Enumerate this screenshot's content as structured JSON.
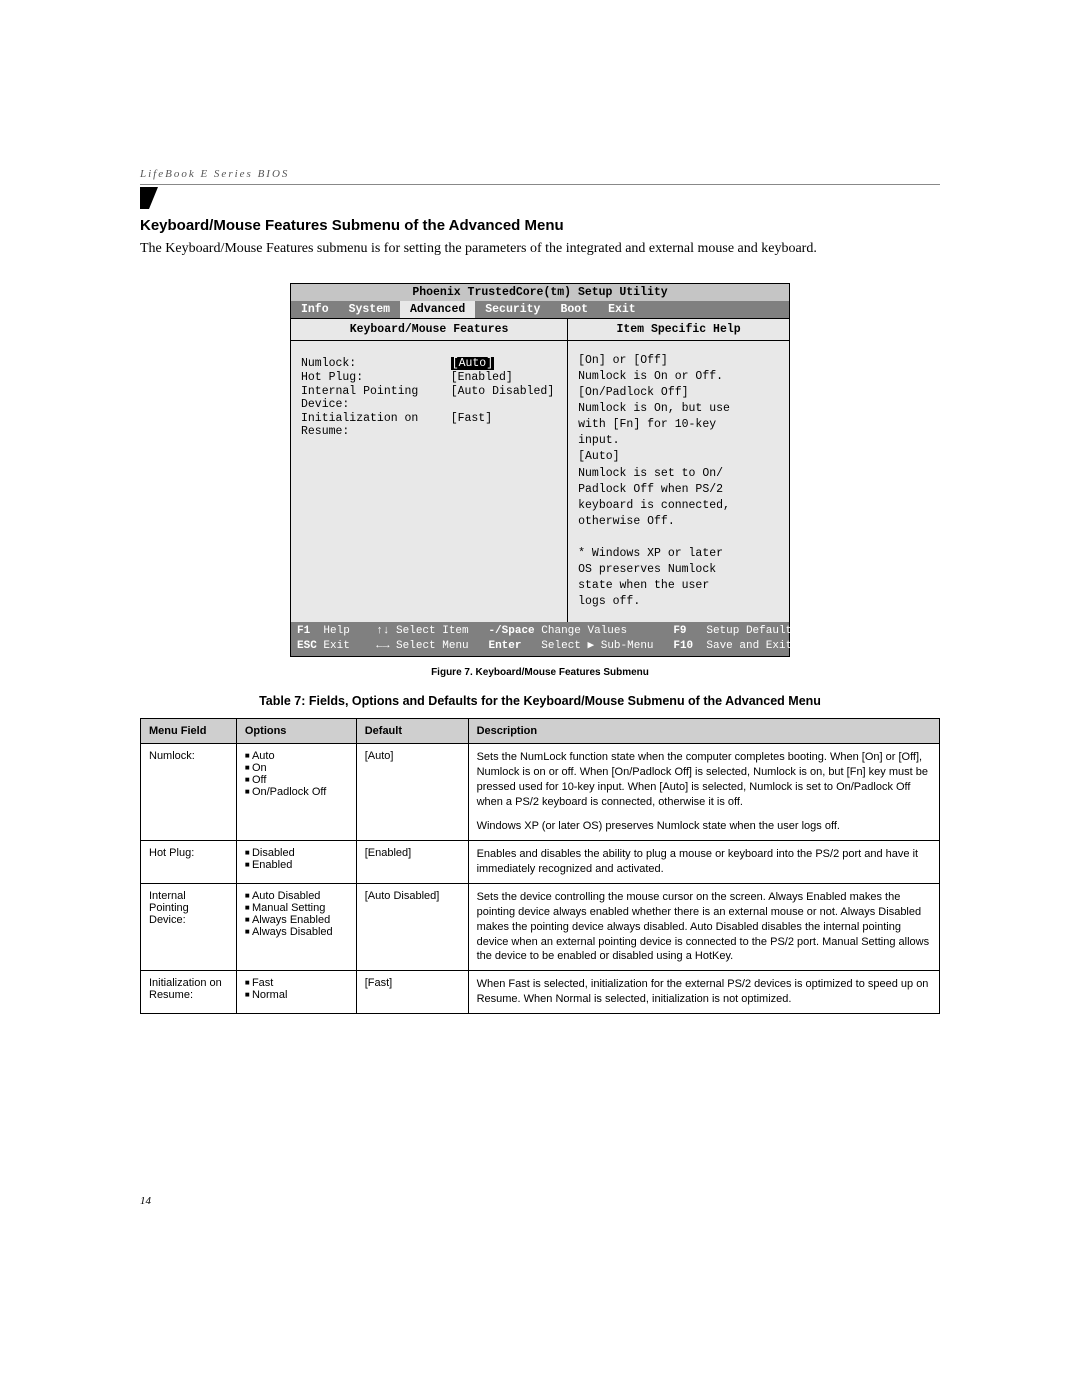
{
  "header": {
    "running_head": "LifeBook E Series BIOS",
    "page_number": "14"
  },
  "section": {
    "title": "Keyboard/Mouse Features Submenu of the Advanced Menu",
    "intro": "The Keyboard/Mouse Features submenu is for setting the parameters of the integrated and external mouse and keyboard."
  },
  "bios": {
    "utility_title": "Phoenix TrustedCore(tm) Setup Utility",
    "tabs": [
      "Info",
      "System",
      "Advanced",
      "Security",
      "Boot",
      "Exit"
    ],
    "active_tab_index": 2,
    "left_header": "Keyboard/Mouse Features",
    "right_header": "Item Specific Help",
    "settings": [
      {
        "label": "Numlock:",
        "value": "[Auto]",
        "selected": true
      },
      {
        "label": "Hot Plug:",
        "value": "[Enabled]",
        "selected": false
      },
      {
        "label": "Internal Pointing Device:",
        "value": "[Auto Disabled]",
        "selected": false
      },
      {
        "label": "Initialization on Resume:",
        "value": "[Fast]",
        "selected": false
      }
    ],
    "help_lines": [
      "[On] or [Off]",
      "Numlock is On or Off.",
      "[On/Padlock Off]",
      "Numlock is On, but use",
      "with [Fn] for 10-key",
      "input.",
      "[Auto]",
      "Numlock is set to On/",
      "Padlock Off when PS/2",
      "keyboard is connected,",
      "otherwise Off.",
      "",
      "* Windows XP or later",
      "OS preserves Numlock",
      "state when the user",
      "logs off."
    ],
    "footer": {
      "row1": {
        "k1": "F1",
        "t1": "Help",
        "nav1": "↑↓ Select Item",
        "k2": "-/Space",
        "t2": "Change Values",
        "k3": "F9",
        "t3": "Setup Defaults"
      },
      "row2": {
        "k1": "ESC",
        "t1": "Exit",
        "nav1": "←→ Select Menu",
        "k2": "Enter",
        "t2": "Select ▶ Sub-Menu",
        "k3": "F10",
        "t3": "Save and Exit"
      }
    }
  },
  "figure_caption": "Figure 7.  Keyboard/Mouse Features Submenu",
  "table_caption": "Table 7: Fields, Options and Defaults for the Keyboard/Mouse Submenu of the Advanced Menu",
  "table": {
    "columns": [
      "Menu Field",
      "Options",
      "Default",
      "Description"
    ],
    "rows": [
      {
        "field": "Numlock:",
        "options": [
          "Auto",
          "On",
          "Off",
          "On/Padlock Off"
        ],
        "default": "[Auto]",
        "description": "Sets the NumLock function state when the computer completes booting. When [On] or [Off], Numlock is on or off. When [On/Padlock Off] is selected, Numlock is on, but [Fn] key must be pressed used for 10-key input. When [Auto] is selected, Numlock is set to On/Padlock Off when a PS/2 keyboard is connected, otherwise it is off.",
        "description2": "Windows XP (or later OS) preserves Numlock state when the user logs off."
      },
      {
        "field": "Hot Plug:",
        "options": [
          "Disabled",
          "Enabled"
        ],
        "default": "[Enabled]",
        "description": "Enables and disables the ability to plug a mouse or keyboard into the PS/2 port and have it immediately recognized and activated."
      },
      {
        "field": "Internal Pointing Device:",
        "options": [
          "Auto Disabled",
          "Manual Setting",
          "Always Enabled",
          "Always Disabled"
        ],
        "default": "[Auto Disabled]",
        "description": "Sets the device controlling the mouse cursor on the screen. Always Enabled makes the pointing device always enabled whether there is an external mouse or not. Always Disabled makes the pointing device always disabled. Auto Disabled disables the internal pointing device when an external pointing device is connected to the PS/2 port. Manual Setting allows the device to be enabled or disabled using a HotKey."
      },
      {
        "field": "Initialization on Resume:",
        "options": [
          "Fast",
          "Normal"
        ],
        "default": "[Fast]",
        "description": "When Fast is selected, initialization for the external PS/2 devices is optimized to speed up on Resume. When Normal is selected, initialization is not optimized."
      }
    ]
  },
  "style": {
    "bios_bg": "#e8e8e8",
    "bios_tab_bg": "#808080",
    "table_header_bg": "#cfcfcf"
  }
}
